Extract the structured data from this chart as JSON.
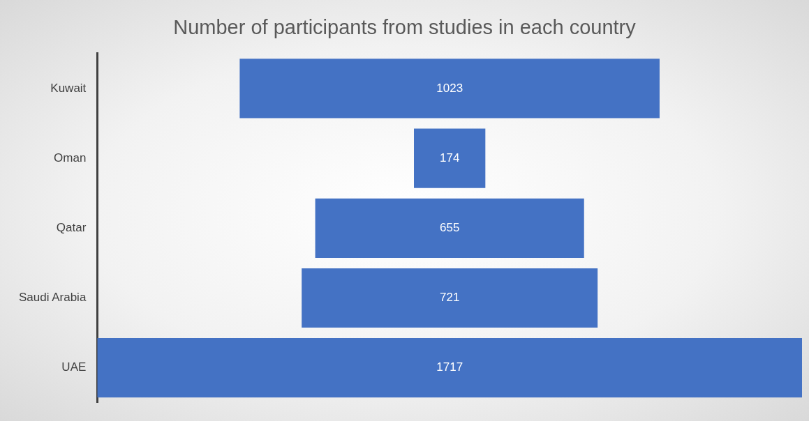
{
  "chart_data": {
    "type": "other",
    "title": "Number of participants from studies in each country",
    "categories": [
      "Kuwait",
      "Oman",
      "Qatar",
      "Saudi Arabia",
      "UAE"
    ],
    "values": [
      1023,
      174,
      655,
      721,
      1717
    ],
    "color": "#4472c4",
    "data_labels": true
  }
}
